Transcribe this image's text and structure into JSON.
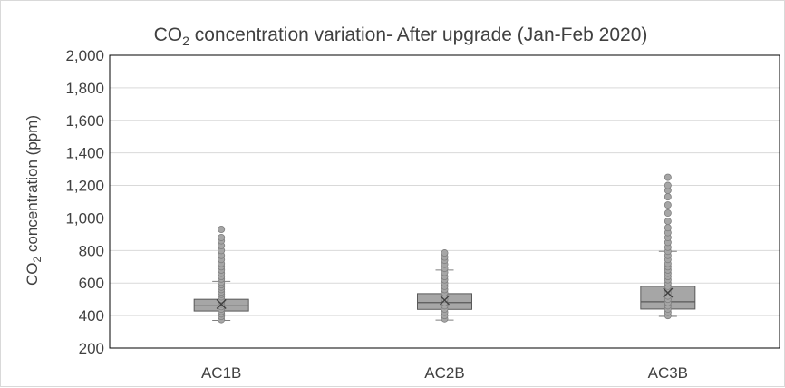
{
  "chart_data": {
    "type": "box",
    "title": {
      "prefix": "CO",
      "subscript": "2",
      "suffix": " concentration variation- After upgrade (Jan-Feb 2020)"
    },
    "ylabel": {
      "prefix": "CO",
      "subscript": "2",
      "suffix": " concentration (ppm)"
    },
    "xlabel": "",
    "ylim": [
      200,
      2000
    ],
    "yticks": [
      200,
      400,
      600,
      800,
      1000,
      1200,
      1400,
      1600,
      1800,
      2000
    ],
    "ytick_labels": [
      "200",
      "400",
      "600",
      "800",
      "1,000",
      "1,200",
      "1,400",
      "1,600",
      "1,800",
      "2,000"
    ],
    "grid": true,
    "legend": "none",
    "categories": [
      "AC1B",
      "AC2B",
      "AC3B"
    ],
    "boxes": [
      {
        "category": "AC1B",
        "whisker_low": 370,
        "q1": 428,
        "median": 460,
        "q3": 500,
        "whisker_high": 610,
        "mean": 470,
        "points": [
          375,
          395,
          410,
          425,
          440,
          455,
          470,
          485,
          500,
          515,
          530,
          545,
          560,
          575,
          590,
          605,
          625,
          640,
          660,
          680,
          700,
          720,
          745,
          770,
          800,
          830,
          860,
          880,
          930
        ]
      },
      {
        "category": "AC2B",
        "whisker_low": 372,
        "q1": 438,
        "median": 480,
        "q3": 535,
        "whisker_high": 680,
        "mean": 495,
        "points": [
          380,
          400,
          420,
          440,
          460,
          480,
          500,
          520,
          540,
          560,
          580,
          600,
          620,
          640,
          665,
          690,
          715,
          740,
          760,
          785
        ]
      },
      {
        "category": "AC3B",
        "whisker_low": 395,
        "q1": 440,
        "median": 485,
        "q3": 580,
        "whisker_high": 795,
        "mean": 540,
        "points": [
          400,
          420,
          440,
          460,
          480,
          500,
          520,
          540,
          560,
          580,
          600,
          620,
          640,
          660,
          680,
          700,
          720,
          745,
          770,
          795,
          820,
          850,
          880,
          910,
          940,
          980,
          1030,
          1080,
          1130,
          1170,
          1200,
          1250
        ]
      }
    ],
    "colors": {
      "box_fill": "#a6a6a6",
      "box_stroke": "#595959",
      "point_fill": "#a6a6a6",
      "point_stroke": "#7f7f7f",
      "whisker": "#7f7f7f",
      "grid": "#d9d9d9",
      "axis": "#000000",
      "text": "#404040"
    }
  }
}
